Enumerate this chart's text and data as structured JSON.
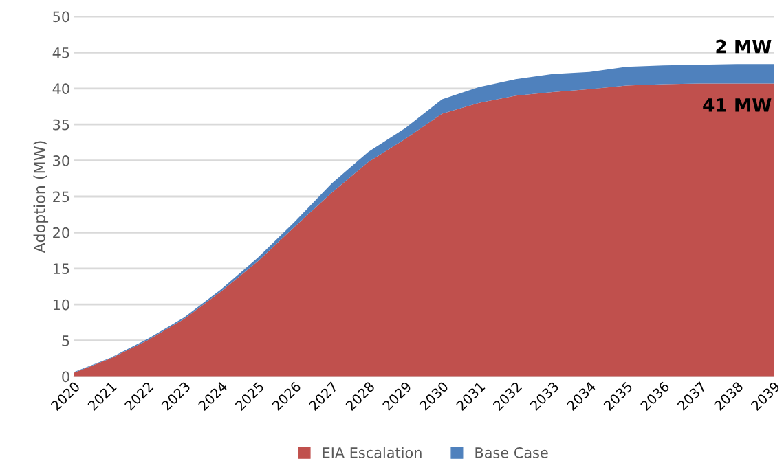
{
  "chart_data": {
    "type": "area",
    "stacked": true,
    "ylabel": "Adoption (MW)",
    "categories": [
      "2020",
      "2021",
      "2022",
      "2023",
      "2024",
      "2025",
      "2026",
      "2027",
      "2028",
      "2029",
      "2030",
      "2031",
      "2032",
      "2033",
      "2034",
      "2035",
      "2036",
      "2037",
      "2038",
      "2039"
    ],
    "series": [
      {
        "name": "EIA Escalation",
        "color": "#c0504d",
        "values": [
          0.5,
          2.5,
          5.0,
          8.0,
          11.8,
          16.0,
          20.8,
          25.5,
          29.8,
          33.0,
          36.5,
          38.0,
          39.0,
          39.5,
          39.9,
          40.4,
          40.6,
          40.7,
          40.7,
          40.7
        ]
      },
      {
        "name": "Base Case",
        "color": "#4f81bd",
        "values": [
          0.1,
          0.1,
          0.2,
          0.2,
          0.3,
          0.5,
          0.7,
          1.3,
          1.4,
          1.5,
          2.0,
          2.2,
          2.3,
          2.5,
          2.4,
          2.6,
          2.6,
          2.6,
          2.7,
          2.7
        ]
      }
    ],
    "ylim": [
      0,
      50
    ],
    "yticks": [
      0,
      5,
      10,
      15,
      20,
      25,
      30,
      35,
      40,
      45,
      50
    ],
    "grid": "y",
    "legend": "bottom",
    "annotations": [
      "2 MW",
      "41 MW"
    ]
  }
}
